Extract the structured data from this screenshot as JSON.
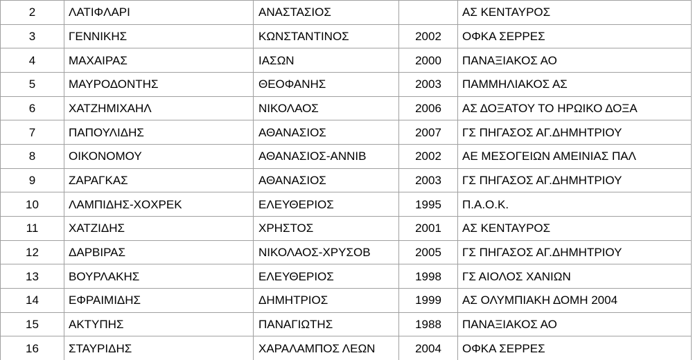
{
  "table": {
    "description": "athlete roster table",
    "columns": [
      {
        "key": "number"
      },
      {
        "key": "surname"
      },
      {
        "key": "firstname"
      },
      {
        "key": "year"
      },
      {
        "key": "club"
      }
    ],
    "rows": [
      {
        "number": "2",
        "surname": "ΛΑΤΙΦΛΑΡΙ",
        "firstname": "ΑΝΑΣΤΑΣΙΟΣ",
        "year": "",
        "club": "ΑΣ ΚΕΝΤΑΥΡΟΣ"
      },
      {
        "number": "3",
        "surname": "ΓΕΝΝΙΚΗΣ",
        "firstname": "ΚΩΝΣΤΑΝΤΙΝΟΣ",
        "year": "2002",
        "club": "ΟΦΚΑ ΣΕΡΡΕΣ"
      },
      {
        "number": "4",
        "surname": "ΜΑΧΑΙΡΑΣ",
        "firstname": "ΙΑΣΩΝ",
        "year": "2000",
        "club": "ΠΑΝΑΞΙΑΚΟΣ ΑΟ"
      },
      {
        "number": "5",
        "surname": "ΜΑΥΡΟΔΟΝΤΗΣ",
        "firstname": "ΘΕΟΦΑΝΗΣ",
        "year": "2003",
        "club": "ΠΑΜΜΗΛΙΑΚΟΣ ΑΣ"
      },
      {
        "number": "6",
        "surname": "ΧΑΤΖΗΜΙΧΑΗΛ",
        "firstname": "ΝΙΚΟΛΑΟΣ",
        "year": "2006",
        "club": "ΑΣ ΔΟΞΑΤΟΥ ΤΟ ΗΡΩΙΚΟ ΔΟΞΑ"
      },
      {
        "number": "7",
        "surname": "ΠΑΠΟΥΛΙΔΗΣ",
        "firstname": "ΑΘΑΝΑΣΙΟΣ",
        "year": "2007",
        "club": "ΓΣ ΠΗΓΑΣΟΣ ΑΓ.ΔΗΜΗΤΡΙΟΥ"
      },
      {
        "number": "8",
        "surname": "ΟΙΚΟΝΟΜΟΥ",
        "firstname": "ΑΘΑΝΑΣΙΟΣ-ΑΝΝΙΒ",
        "year": "2002",
        "club": "ΑΕ ΜΕΣΟΓΕΙΩΝ ΑΜΕΙΝΙΑΣ ΠΑΛ"
      },
      {
        "number": "9",
        "surname": "ΖΑΡΑΓΚΑΣ",
        "firstname": "ΑΘΑΝΑΣΙΟΣ",
        "year": "2003",
        "club": "ΓΣ ΠΗΓΑΣΟΣ ΑΓ.ΔΗΜΗΤΡΙΟΥ"
      },
      {
        "number": "10",
        "surname": "ΛΑΜΠΙΔΗΣ-ΧΟΧΡΕΚ",
        "firstname": "ΕΛΕΥΘΕΡΙΟΣ",
        "year": "1995",
        "club": "Π.Α.Ο.Κ."
      },
      {
        "number": "11",
        "surname": "ΧΑΤΖΙΔΗΣ",
        "firstname": "ΧΡΗΣΤΟΣ",
        "year": "2001",
        "club": "ΑΣ ΚΕΝΤΑΥΡΟΣ"
      },
      {
        "number": "12",
        "surname": "ΔΑΡΒΙΡΑΣ",
        "firstname": "ΝΙΚΟΛΑΟΣ-ΧΡΥΣΟΒ",
        "year": "2005",
        "club": "ΓΣ ΠΗΓΑΣΟΣ ΑΓ.ΔΗΜΗΤΡΙΟΥ"
      },
      {
        "number": "13",
        "surname": "ΒΟΥΡΛΑΚΗΣ",
        "firstname": "ΕΛΕΥΘΕΡΙΟΣ",
        "year": "1998",
        "club": "ΓΣ ΑΙΟΛΟΣ ΧΑΝΙΩΝ"
      },
      {
        "number": "14",
        "surname": "ΕΦΡΑΙΜΙΔΗΣ",
        "firstname": "ΔΗΜΗΤΡΙΟΣ",
        "year": "1999",
        "club": "ΑΣ ΟΛΥΜΠΙΑΚΗ ΔΟΜΗ 2004"
      },
      {
        "number": "15",
        "surname": "ΑΚΤΥΠΗΣ",
        "firstname": "ΠΑΝΑΓΙΩΤΗΣ",
        "year": "1988",
        "club": "ΠΑΝΑΞΙΑΚΟΣ ΑΟ"
      },
      {
        "number": "16",
        "surname": "ΣΤΑΥΡΙΔΗΣ",
        "firstname": "ΧΑΡΑΛΑΜΠΟΣ ΛΕΩΝ",
        "year": "2004",
        "club": "ΟΦΚΑ ΣΕΡΡΕΣ"
      }
    ]
  },
  "colors": {
    "border": "#a0a0a0",
    "text": "#000000",
    "background": "#ffffff"
  }
}
